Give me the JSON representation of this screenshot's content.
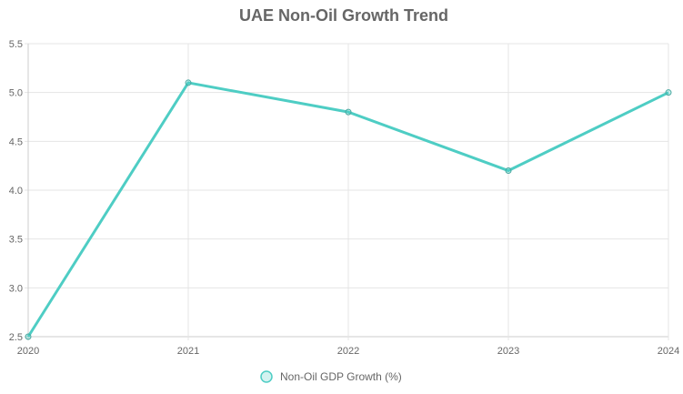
{
  "chart_data": {
    "type": "line",
    "title": "UAE Non-Oil Growth Trend",
    "categories": [
      "2020",
      "2021",
      "2022",
      "2023",
      "2024"
    ],
    "series": [
      {
        "name": "Non-Oil GDP Growth (%)",
        "values": [
          2.5,
          5.1,
          4.8,
          4.2,
          5.0
        ],
        "color": "#4ecdc4"
      }
    ],
    "ylim": [
      2.5,
      5.5
    ],
    "yticks": [
      "2.5",
      "3.0",
      "3.5",
      "4.0",
      "4.5",
      "5.0",
      "5.5"
    ],
    "grid": true,
    "legend": "bottom"
  }
}
